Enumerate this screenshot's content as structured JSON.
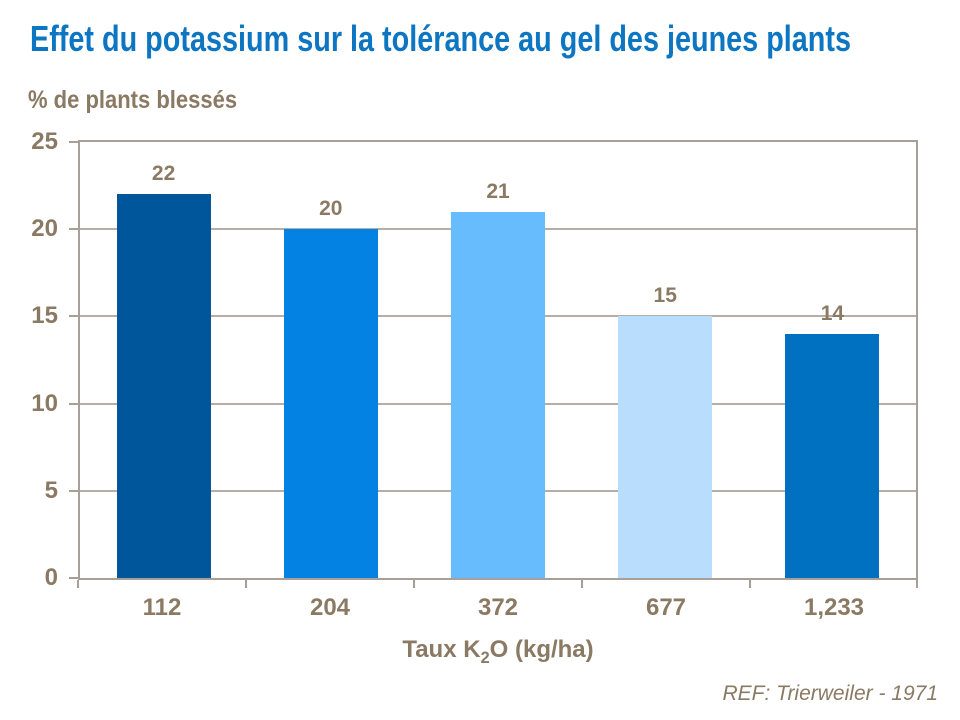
{
  "chart_data": {
    "type": "bar",
    "title": "Effet du potassium sur la tolérance au gel des jeunes plants",
    "ylabel": "% de plants blessés",
    "xlabel": {
      "prefix": "Taux K",
      "sub": "2",
      "suffix": "O (kg/ha)"
    },
    "categories": [
      "112",
      "204",
      "372",
      "677",
      "1,233"
    ],
    "values": [
      22,
      20,
      21,
      15,
      14
    ],
    "bar_colors": [
      "#00569B",
      "#0382E4",
      "#66BCFC",
      "#B9DDFC",
      "#0070C0"
    ],
    "y_ticks": [
      0,
      5,
      10,
      15,
      20,
      25
    ],
    "ylim": [
      0,
      25
    ],
    "grid": true,
    "legend": false,
    "reference": "REF: Trierweiler - 1971",
    "colors": {
      "title": "#0D76C2",
      "axis_text": "#8A7963",
      "axis_frame": "#A8A098",
      "gridline": "#B6AEA6"
    }
  }
}
